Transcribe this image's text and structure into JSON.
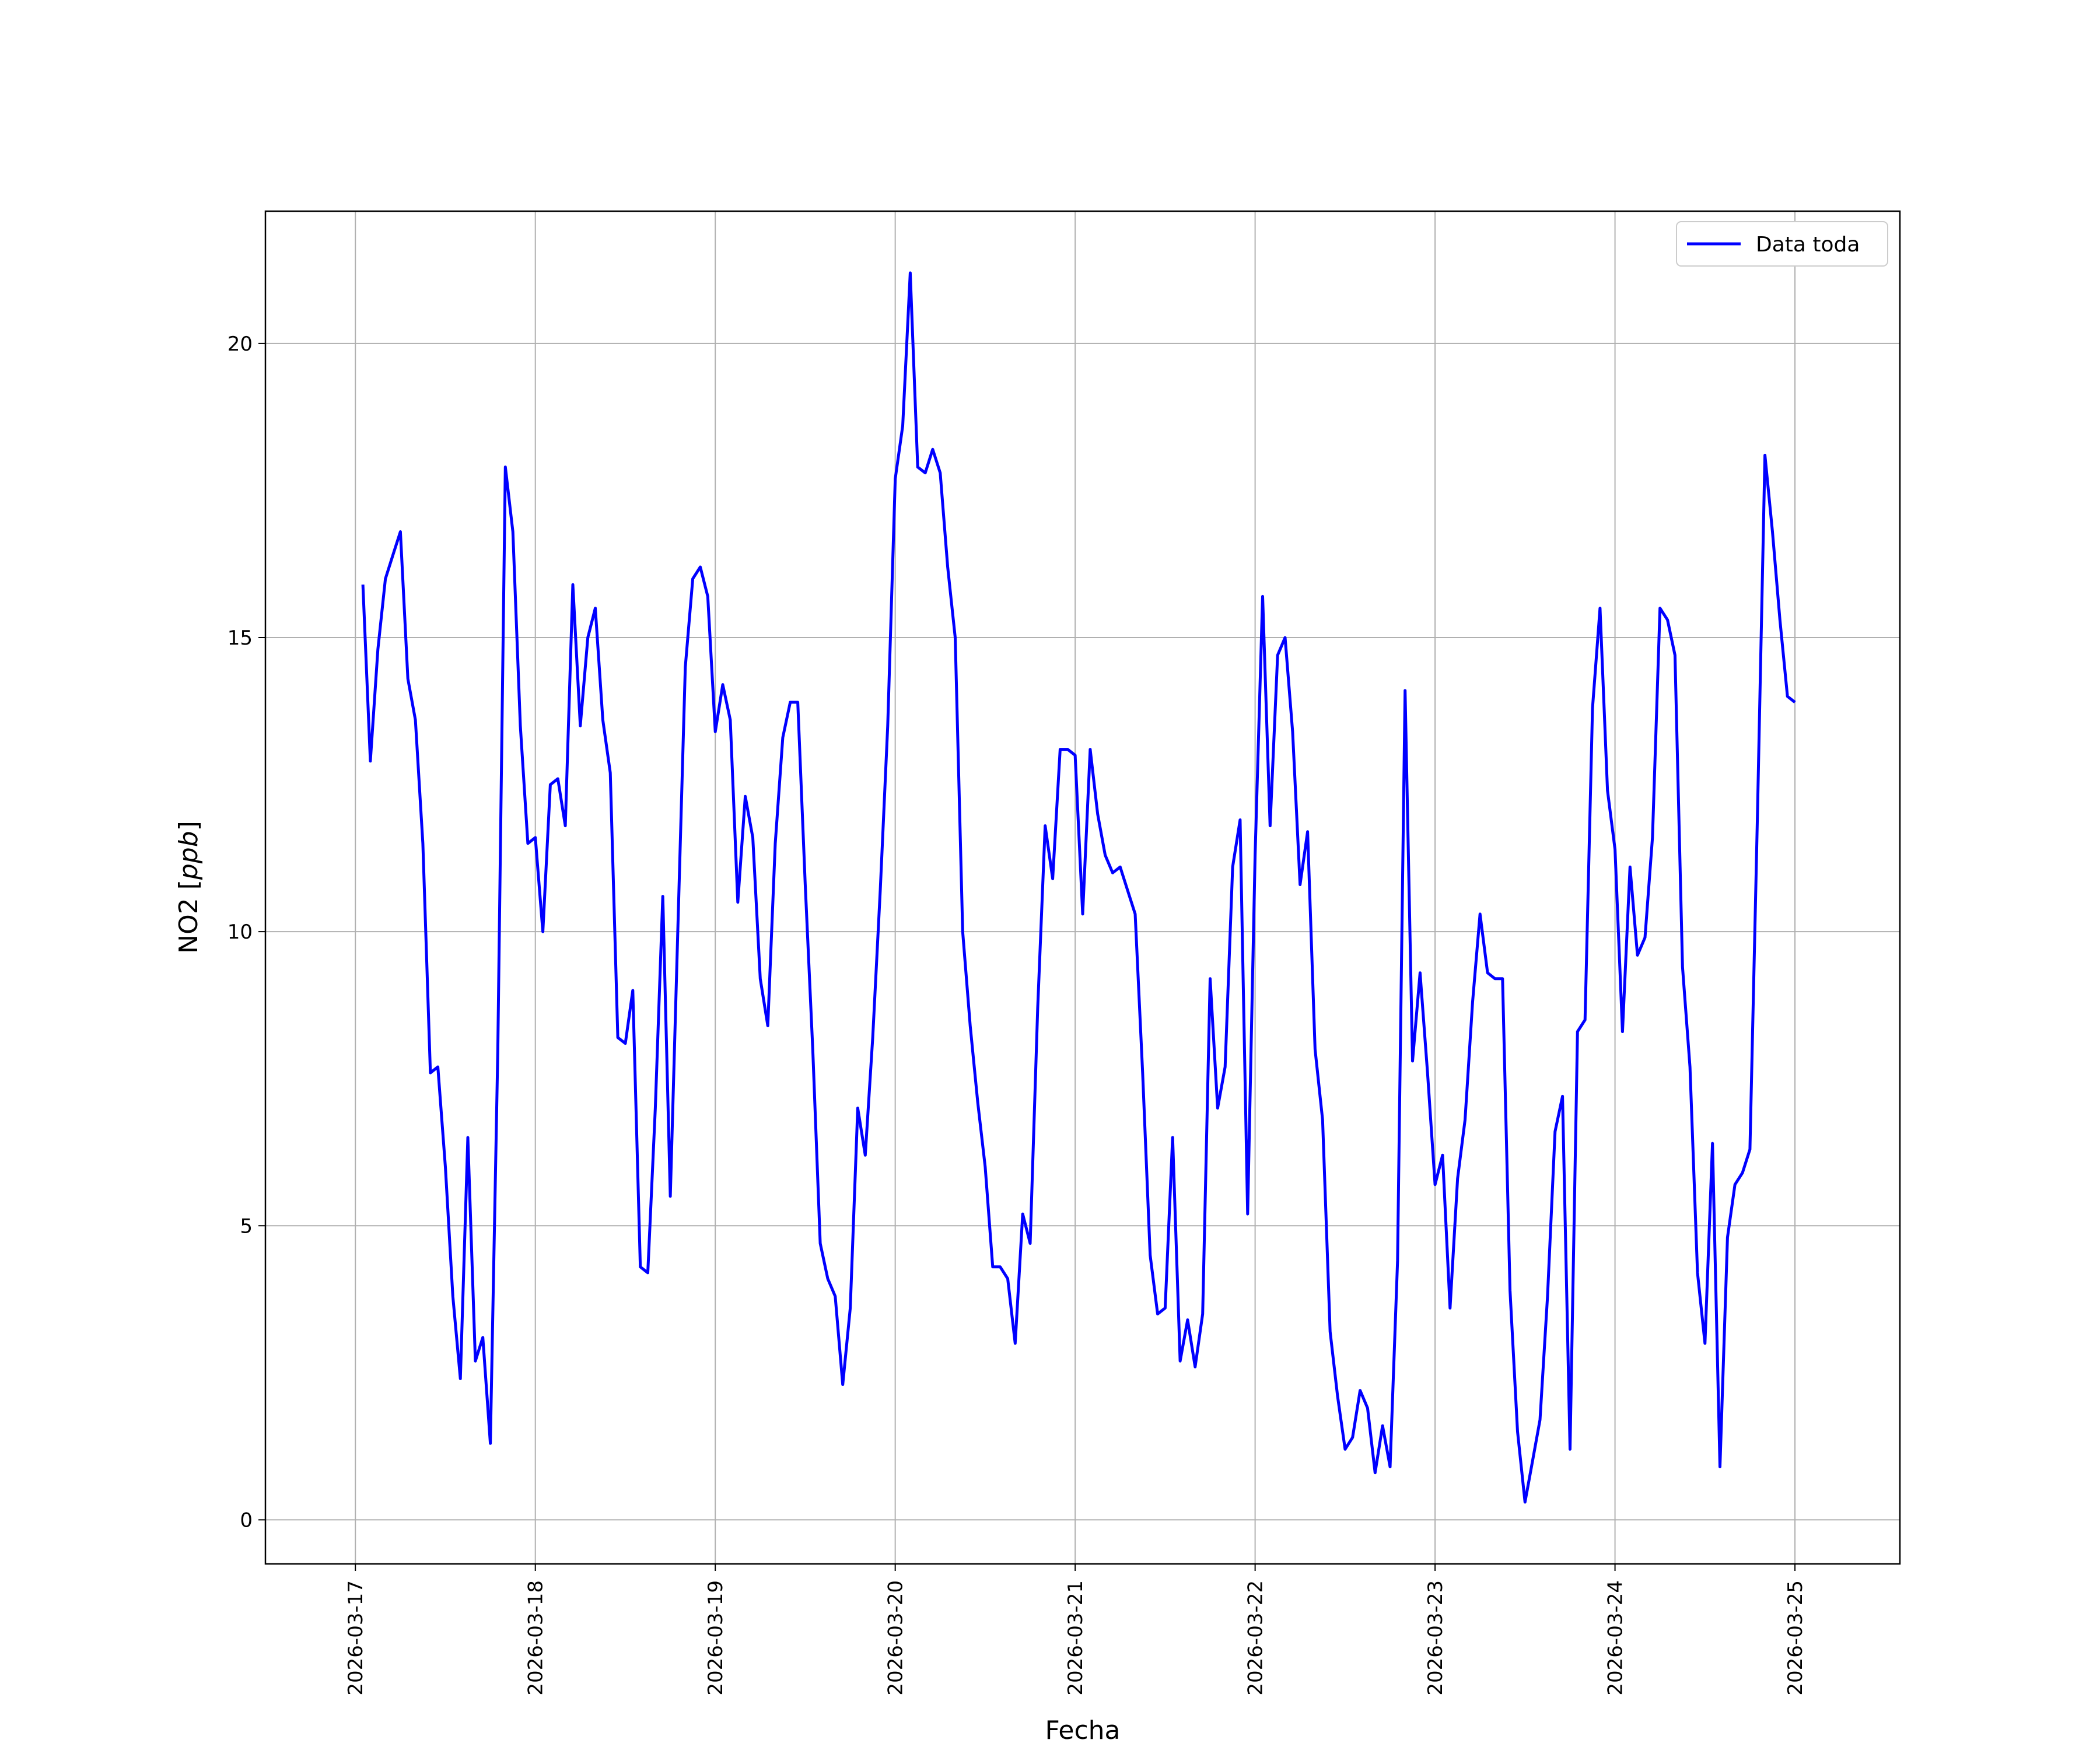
{
  "chart_data": {
    "type": "line",
    "xlabel": "Fecha",
    "ylabel": "NO2",
    "ylabel_unit": "ppb",
    "ylim": [
      -0.75,
      22.25
    ],
    "xlim": [
      "2026-03-16T12:00",
      "2026-03-25T14:00"
    ],
    "grid": true,
    "legend_position": "top-right",
    "x_ticks": [
      "2026-03-17",
      "2026-03-18",
      "2026-03-19",
      "2026-03-20",
      "2026-03-21",
      "2026-03-22",
      "2026-03-23",
      "2026-03-24",
      "2026-03-25"
    ],
    "y_ticks": [
      "0",
      "5",
      "10",
      "15",
      "20"
    ],
    "y_tick_values": [
      0,
      5,
      10,
      15,
      20
    ],
    "series": [
      {
        "name": "Data toda",
        "color": "#0000ff",
        "x": [
          "2026-03-17T01:00",
          "2026-03-17T02:00",
          "2026-03-17T03:00",
          "2026-03-17T04:00",
          "2026-03-17T05:00",
          "2026-03-17T06:00",
          "2026-03-17T07:00",
          "2026-03-17T08:00",
          "2026-03-17T09:00",
          "2026-03-17T10:00",
          "2026-03-17T11:00",
          "2026-03-17T12:00",
          "2026-03-17T13:00",
          "2026-03-17T14:00",
          "2026-03-17T15:00",
          "2026-03-17T16:00",
          "2026-03-17T17:00",
          "2026-03-17T18:00",
          "2026-03-17T19:00",
          "2026-03-17T20:00",
          "2026-03-17T21:00",
          "2026-03-17T22:00",
          "2026-03-17T23:00",
          "2026-03-18T00:00",
          "2026-03-18T01:00",
          "2026-03-18T02:00",
          "2026-03-18T03:00",
          "2026-03-18T04:00",
          "2026-03-18T05:00",
          "2026-03-18T06:00",
          "2026-03-18T07:00",
          "2026-03-18T08:00",
          "2026-03-18T09:00",
          "2026-03-18T10:00",
          "2026-03-18T11:00",
          "2026-03-18T12:00",
          "2026-03-18T13:00",
          "2026-03-18T14:00",
          "2026-03-18T15:00",
          "2026-03-18T16:00",
          "2026-03-18T17:00",
          "2026-03-18T18:00",
          "2026-03-18T19:00",
          "2026-03-18T20:00",
          "2026-03-18T21:00",
          "2026-03-18T22:00",
          "2026-03-18T23:00",
          "2026-03-19T00:00",
          "2026-03-19T01:00",
          "2026-03-19T02:00",
          "2026-03-19T03:00",
          "2026-03-19T04:00",
          "2026-03-19T05:00",
          "2026-03-19T06:00",
          "2026-03-19T07:00",
          "2026-03-19T08:00",
          "2026-03-19T09:00",
          "2026-03-19T10:00",
          "2026-03-19T11:00",
          "2026-03-19T12:00",
          "2026-03-19T13:00",
          "2026-03-19T14:00",
          "2026-03-19T15:00",
          "2026-03-19T16:00",
          "2026-03-19T17:00",
          "2026-03-19T18:00",
          "2026-03-19T19:00",
          "2026-03-19T20:00",
          "2026-03-19T21:00",
          "2026-03-19T22:00",
          "2026-03-19T23:00",
          "2026-03-20T00:00",
          "2026-03-20T01:00",
          "2026-03-20T02:00",
          "2026-03-20T03:00",
          "2026-03-20T04:00",
          "2026-03-20T05:00",
          "2026-03-20T06:00",
          "2026-03-20T07:00",
          "2026-03-20T08:00",
          "2026-03-20T09:00",
          "2026-03-20T10:00",
          "2026-03-20T11:00",
          "2026-03-20T12:00",
          "2026-03-20T13:00",
          "2026-03-20T14:00",
          "2026-03-20T15:00",
          "2026-03-20T16:00",
          "2026-03-20T17:00",
          "2026-03-20T18:00",
          "2026-03-20T19:00",
          "2026-03-20T20:00",
          "2026-03-20T21:00",
          "2026-03-20T22:00",
          "2026-03-20T23:00",
          "2026-03-21T00:00",
          "2026-03-21T01:00",
          "2026-03-21T02:00",
          "2026-03-21T03:00",
          "2026-03-21T04:00",
          "2026-03-21T05:00",
          "2026-03-21T06:00",
          "2026-03-21T07:00",
          "2026-03-21T08:00",
          "2026-03-21T09:00",
          "2026-03-21T10:00",
          "2026-03-21T11:00",
          "2026-03-21T12:00",
          "2026-03-21T13:00",
          "2026-03-21T14:00",
          "2026-03-21T15:00",
          "2026-03-21T16:00",
          "2026-03-21T17:00",
          "2026-03-21T18:00",
          "2026-03-21T19:00",
          "2026-03-21T20:00",
          "2026-03-21T21:00",
          "2026-03-21T22:00",
          "2026-03-21T23:00",
          "2026-03-22T00:00",
          "2026-03-22T01:00",
          "2026-03-22T02:00",
          "2026-03-22T03:00",
          "2026-03-22T04:00",
          "2026-03-22T05:00",
          "2026-03-22T06:00",
          "2026-03-22T07:00",
          "2026-03-22T08:00",
          "2026-03-22T09:00",
          "2026-03-22T10:00",
          "2026-03-22T11:00",
          "2026-03-22T12:00",
          "2026-03-22T13:00",
          "2026-03-22T14:00",
          "2026-03-22T15:00",
          "2026-03-22T16:00",
          "2026-03-22T17:00",
          "2026-03-22T18:00",
          "2026-03-22T19:00",
          "2026-03-22T20:00",
          "2026-03-22T21:00",
          "2026-03-22T22:00",
          "2026-03-22T23:00",
          "2026-03-23T00:00",
          "2026-03-23T01:00",
          "2026-03-23T02:00",
          "2026-03-23T03:00",
          "2026-03-23T04:00",
          "2026-03-23T05:00",
          "2026-03-23T06:00",
          "2026-03-23T07:00",
          "2026-03-23T08:00",
          "2026-03-23T09:00",
          "2026-03-23T10:00",
          "2026-03-23T11:00",
          "2026-03-23T12:00",
          "2026-03-23T13:00",
          "2026-03-23T14:00",
          "2026-03-23T15:00",
          "2026-03-23T16:00",
          "2026-03-23T17:00",
          "2026-03-23T18:00",
          "2026-03-23T19:00",
          "2026-03-23T20:00",
          "2026-03-23T21:00",
          "2026-03-23T22:00",
          "2026-03-23T23:00",
          "2026-03-24T00:00",
          "2026-03-24T01:00",
          "2026-03-24T02:00",
          "2026-03-24T03:00",
          "2026-03-24T04:00",
          "2026-03-24T05:00",
          "2026-03-24T06:00",
          "2026-03-24T07:00",
          "2026-03-24T08:00",
          "2026-03-24T09:00",
          "2026-03-24T10:00",
          "2026-03-24T11:00",
          "2026-03-24T12:00",
          "2026-03-24T13:00",
          "2026-03-24T14:00",
          "2026-03-24T15:00",
          "2026-03-24T16:00",
          "2026-03-24T17:00",
          "2026-03-24T18:00",
          "2026-03-24T19:00",
          "2026-03-24T20:00",
          "2026-03-24T21:00",
          "2026-03-24T22:00",
          "2026-03-24T23:00",
          "2026-03-25T00:00"
        ],
        "values": [
          15.9,
          12.9,
          14.8,
          16.0,
          16.4,
          16.8,
          14.3,
          13.6,
          11.5,
          7.6,
          7.7,
          6.0,
          3.8,
          2.4,
          6.5,
          2.7,
          3.1,
          1.3,
          8.0,
          17.9,
          16.8,
          13.5,
          11.5,
          11.6,
          10.0,
          12.5,
          12.6,
          11.8,
          15.9,
          13.5,
          15.0,
          15.5,
          13.6,
          12.7,
          8.2,
          8.1,
          9.0,
          4.3,
          4.2,
          7.0,
          10.6,
          5.5,
          10.0,
          14.5,
          16.0,
          16.2,
          15.7,
          13.4,
          14.2,
          13.6,
          10.5,
          12.3,
          11.6,
          9.2,
          8.4,
          11.5,
          13.3,
          13.9,
          13.9,
          10.8,
          8.0,
          4.7,
          4.1,
          3.8,
          2.3,
          3.6,
          7.0,
          6.2,
          8.2,
          10.7,
          13.5,
          17.7,
          18.6,
          21.2,
          17.9,
          17.8,
          18.2,
          17.8,
          16.2,
          15.0,
          10.0,
          8.4,
          7.1,
          6.0,
          4.3,
          4.3,
          4.1,
          3.0,
          5.2,
          4.7,
          8.7,
          11.8,
          10.9,
          13.1,
          13.1,
          13.0,
          10.3,
          13.1,
          12.0,
          11.3,
          11.0,
          11.1,
          10.7,
          10.3,
          7.6,
          4.5,
          3.5,
          3.6,
          6.5,
          2.7,
          3.4,
          2.6,
          3.5,
          9.2,
          7.0,
          7.7,
          11.1,
          11.9,
          5.2,
          11.3,
          15.7,
          11.8,
          14.7,
          15.0,
          13.4,
          10.8,
          11.7,
          8.0,
          6.8,
          3.2,
          2.1,
          1.2,
          1.4,
          2.2,
          1.9,
          0.8,
          1.6,
          0.9,
          4.4,
          14.1,
          7.8,
          9.3,
          7.6,
          5.7,
          6.2,
          3.6,
          5.8,
          6.8,
          8.8,
          10.3,
          9.3,
          9.2,
          9.2,
          3.9,
          1.5,
          0.3,
          1.0,
          1.7,
          3.8,
          6.6,
          7.2,
          1.2,
          8.3,
          8.5,
          13.8,
          15.5,
          12.4,
          11.4,
          8.3,
          11.1,
          9.6,
          9.9,
          11.6,
          15.5,
          15.3,
          14.7,
          9.4,
          7.7,
          4.2,
          3.0,
          6.4,
          0.9,
          4.8,
          5.7,
          5.9,
          6.3,
          12.0,
          18.1,
          16.8,
          15.3,
          14.0,
          13.9
        ]
      }
    ]
  }
}
